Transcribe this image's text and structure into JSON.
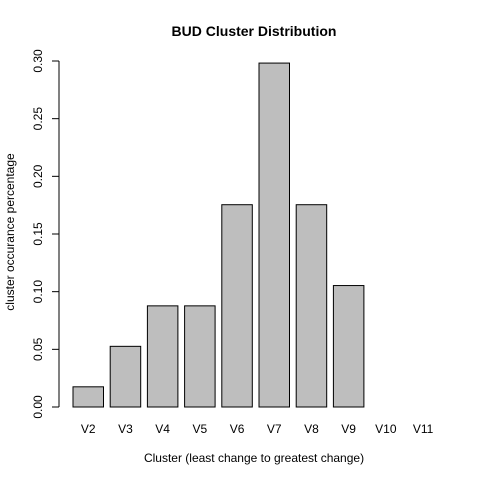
{
  "chart_data": {
    "type": "bar",
    "title": "BUD Cluster Distribution",
    "xlabel": "Cluster (least change to greatest change)",
    "ylabel": "cluster occurance percentage",
    "categories": [
      "V2",
      "V3",
      "V4",
      "V5",
      "V6",
      "V7",
      "V8",
      "V9",
      "V10",
      "V11"
    ],
    "values": [
      0.0175,
      0.0526,
      0.0877,
      0.0877,
      0.1754,
      0.2982,
      0.1754,
      0.1053,
      0.0,
      0.0
    ],
    "ylim": [
      0,
      0.3
    ],
    "yticks": [
      "0.00",
      "0.05",
      "0.10",
      "0.15",
      "0.20",
      "0.25",
      "0.30"
    ],
    "grid": false,
    "bar_color": "#bebebe",
    "bar_border_color": "#000000"
  }
}
